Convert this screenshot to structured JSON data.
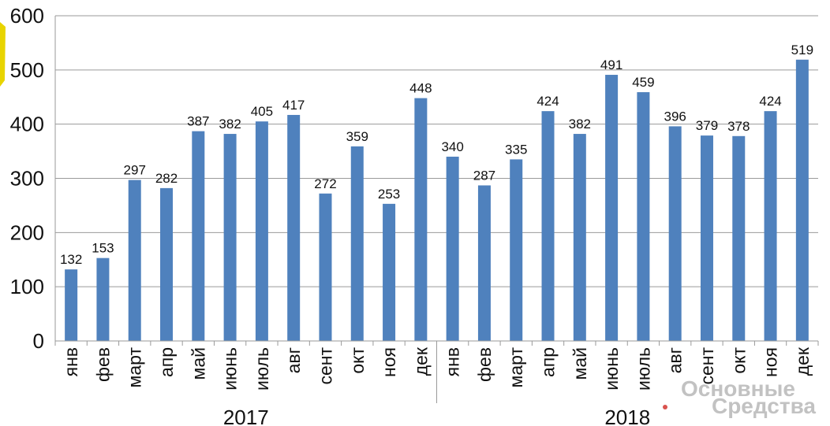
{
  "chart_data": {
    "type": "bar",
    "categories": [
      "янв",
      "фев",
      "март",
      "апр",
      "май",
      "июнь",
      "июль",
      "авг",
      "сент",
      "окт",
      "ноя",
      "дек",
      "янв",
      "фев",
      "март",
      "апр",
      "май",
      "июнь",
      "июль",
      "авг",
      "сент",
      "окт",
      "ноя",
      "дек"
    ],
    "groups": [
      {
        "label": "2017",
        "count": 12
      },
      {
        "label": "2018",
        "count": 12
      }
    ],
    "values": [
      132,
      153,
      297,
      282,
      387,
      382,
      405,
      417,
      272,
      359,
      253,
      448,
      340,
      287,
      335,
      424,
      382,
      491,
      459,
      396,
      379,
      378,
      424,
      519
    ],
    "ylim": [
      0,
      600
    ],
    "yticks": [
      0,
      100,
      200,
      300,
      400,
      500,
      600
    ],
    "grid": true,
    "bar_color": "#4f81bd",
    "title": "",
    "xlabel": "",
    "ylabel": ""
  },
  "watermark": {
    "line1": "Основные",
    "line2": "Средства",
    "color": "#b8b8b8",
    "dot_color": "#d9534f"
  },
  "decor_color": "#e8d400"
}
